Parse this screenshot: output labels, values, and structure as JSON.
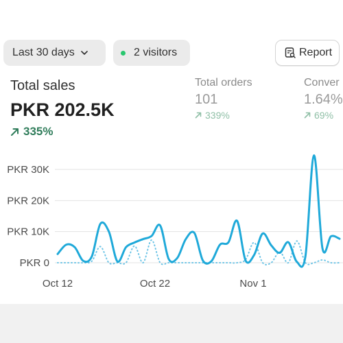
{
  "toolbar": {
    "date_range_label": "Last 30 days",
    "visitors_label": "2 visitors",
    "report_label": "Report"
  },
  "metrics": {
    "total_sales": {
      "title": "Total sales",
      "value": "PKR 202.5K",
      "delta": "335%"
    },
    "total_orders": {
      "title": "Total orders",
      "value": "101",
      "delta": "339%"
    },
    "conversion": {
      "title": "Conver",
      "value": "1.64%",
      "delta": "69%"
    }
  },
  "colors": {
    "accent": "#1fa9d9",
    "positive": "#2f7c5a",
    "live_dot": "#29c76f"
  },
  "icons": {
    "date_range": "chevron-down-icon",
    "visitors": "live-dot-icon",
    "report": "report-icon",
    "delta": "arrow-up-right-icon"
  },
  "chart_data": {
    "type": "line",
    "y_ticks": [
      "PKR 30K",
      "PKR 20K",
      "PKR 10K",
      "PKR 0"
    ],
    "x_ticks": [
      "Oct 12",
      "Oct 22",
      "Nov 1"
    ],
    "ylim": [
      0,
      35000
    ],
    "grid": true,
    "series": [
      {
        "style": "solid",
        "values": [
          2800,
          5800,
          5000,
          600,
          2000,
          12500,
          10000,
          400,
          5000,
          6500,
          7600,
          8600,
          12000,
          1200,
          1500,
          7600,
          9600,
          700,
          500,
          5800,
          6600,
          13500,
          700,
          2500,
          9400,
          5600,
          3200,
          6600,
          300,
          2000,
          34500,
          4600,
          8500,
          7700
        ]
      },
      {
        "style": "dotted",
        "values": [
          0,
          0,
          0,
          0,
          500,
          5200,
          0,
          0,
          0,
          5400,
          0,
          7300,
          0,
          0,
          0,
          0,
          0,
          0,
          0,
          0,
          0,
          0,
          1000,
          6500,
          0,
          0,
          3500,
          0,
          7000,
          0,
          0,
          900,
          0,
          0
        ]
      }
    ]
  }
}
